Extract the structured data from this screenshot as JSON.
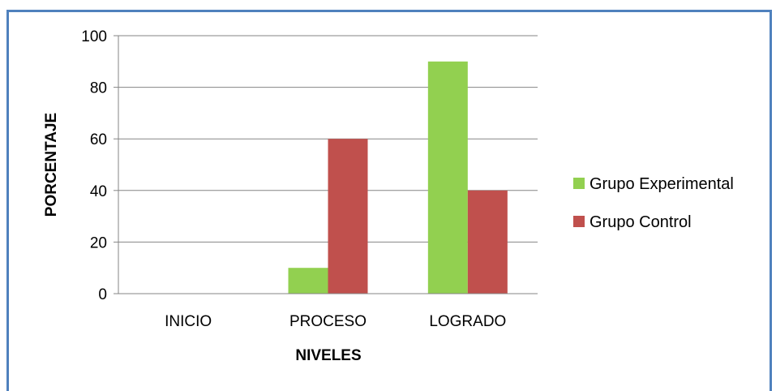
{
  "chart_data": {
    "type": "bar",
    "categories": [
      "INICIO",
      "PROCESO",
      "LOGRADO"
    ],
    "series": [
      {
        "name": "Grupo Experimental",
        "values": [
          0,
          10,
          90
        ],
        "color": "#92d050"
      },
      {
        "name": "Grupo Control",
        "values": [
          0,
          60,
          40
        ],
        "color": "#c0504d"
      }
    ],
    "xlabel": "NIVELES",
    "ylabel": "PORCENTAJE",
    "ylim": [
      0,
      100
    ],
    "yticks": [
      0,
      20,
      40,
      60,
      80,
      100
    ],
    "grid": true,
    "legend_position": "right",
    "frame_color": "#4f81bd",
    "gridline_color": "#868686"
  }
}
